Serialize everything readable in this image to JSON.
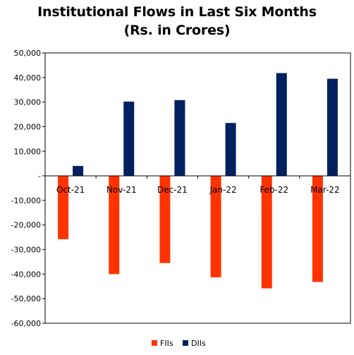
{
  "chart_data": {
    "type": "bar",
    "title": "Institutional  Flows in Last Six Months",
    "subtitle": "(Rs. in Crores)",
    "categories": [
      "Oct-21",
      "Nov-21",
      "Dec-21",
      "Jan-22",
      "Feb-22",
      "Mar-22"
    ],
    "series": [
      {
        "name": "FIIs",
        "color": "#ff3300",
        "values": [
          -25800,
          -40000,
          -35500,
          -41300,
          -45800,
          -43200
        ]
      },
      {
        "name": "DIIs",
        "color": "#002060",
        "values": [
          4000,
          30200,
          30800,
          21500,
          41800,
          39500
        ]
      }
    ],
    "ylim": [
      -60000,
      50000
    ],
    "yticks": [
      50000,
      40000,
      30000,
      20000,
      10000,
      0,
      -10000,
      -20000,
      -30000,
      -40000,
      -50000,
      -60000
    ],
    "ytick_labels": [
      "50,000",
      "40,000",
      "30,000",
      "20,000",
      "10,000",
      "-",
      "-10,000",
      "-20,000",
      "-30,000",
      "-40,000",
      "-50,000",
      "-60,000"
    ],
    "xlabel": "",
    "ylabel": "",
    "grid": false,
    "legend": "bottom-center"
  }
}
